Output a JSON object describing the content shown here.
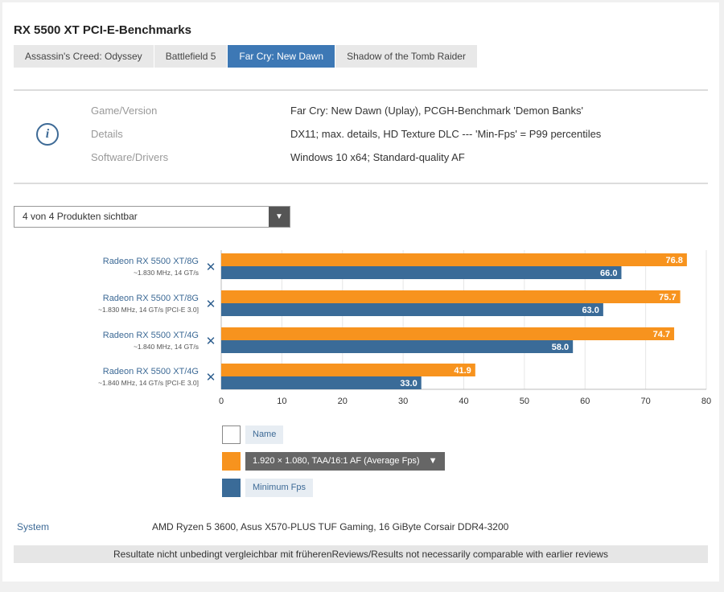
{
  "title": "RX 5500 XT PCI-E-Benchmarks",
  "tabs": [
    {
      "label": "Assassin's Creed: Odyssey",
      "active": false
    },
    {
      "label": "Battlefield 5",
      "active": false
    },
    {
      "label": "Far Cry: New Dawn",
      "active": true
    },
    {
      "label": "Shadow of the Tomb Raider",
      "active": false
    }
  ],
  "info": {
    "icon": "info-icon",
    "rows": [
      {
        "label": "Game/Version",
        "value": "Far Cry: New Dawn (Uplay), PCGH-Benchmark 'Demon Banks'"
      },
      {
        "label": "Details",
        "value": "DX11; max. details, HD Texture DLC --- 'Min-Fps' = P99 percentiles"
      },
      {
        "label": "Software/Drivers",
        "value": "Windows 10 x64; Standard-quality AF"
      }
    ]
  },
  "product_select": {
    "value": "4 von 4 Produkten sichtbar",
    "icon": "chevron-down-icon"
  },
  "chart_data": {
    "type": "bar",
    "orientation": "horizontal",
    "categories": [
      {
        "name": "Radeon RX 5500 XT/8G",
        "sub": "~1.830 MHz, 14 GT/s"
      },
      {
        "name": "Radeon RX 5500 XT/8G",
        "sub": "~1.830 MHz, 14 GT/s [PCI-E 3.0]"
      },
      {
        "name": "Radeon RX 5500 XT/4G",
        "sub": "~1.840 MHz, 14 GT/s"
      },
      {
        "name": "Radeon RX 5500 XT/4G",
        "sub": "~1.840 MHz, 14 GT/s [PCI-E 3.0]"
      }
    ],
    "series": [
      {
        "name": "1.920 × 1.080, TAA/16:1 AF (Average Fps)",
        "color": "#f7931e",
        "values": [
          76.8,
          75.7,
          74.7,
          41.9
        ]
      },
      {
        "name": "Minimum Fps",
        "color": "#3a6b98",
        "values": [
          66.0,
          63.0,
          58.0,
          33.0
        ]
      }
    ],
    "xlim": [
      0,
      80
    ],
    "xticks": [
      0,
      10,
      20,
      30,
      40,
      50,
      60,
      70,
      80
    ],
    "grid": true,
    "remove_icon": "close-icon"
  },
  "legend": {
    "name_label": "Name",
    "avg_label": "1.920 × 1.080, TAA/16:1 AF (Average Fps)",
    "avg_icon": "chevron-down-icon",
    "min_label": "Minimum Fps",
    "avg_color": "#f7931e",
    "min_color": "#3a6b98"
  },
  "system": {
    "label": "System",
    "value": "AMD Ryzen 5 3600, Asus X570-PLUS TUF Gaming, 16 GiByte Corsair DDR4-3200"
  },
  "footer": "Resultate nicht unbedingt vergleichbar mit früherenReviews/Results not necessarily comparable with earlier reviews"
}
